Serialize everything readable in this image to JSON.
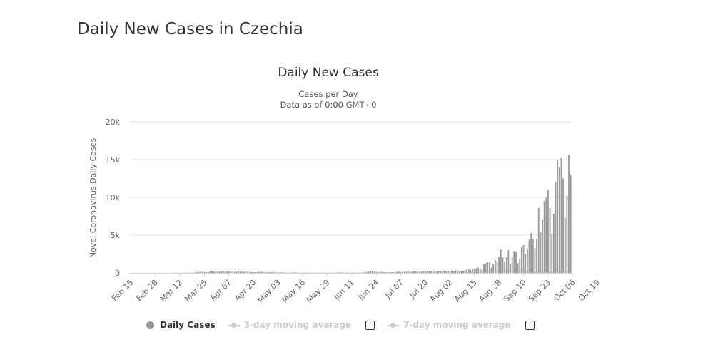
{
  "page": {
    "heading": "Daily New Cases in Czechia"
  },
  "legend": {
    "daily_cases": "Daily Cases",
    "ma3": "3-day moving average",
    "ma7": "7-day moving average"
  },
  "colors": {
    "bar": "#999999",
    "grid": "#e6e6e6",
    "axis_line": "#ccd6eb",
    "inactive": "#cccccc"
  },
  "chart_data": {
    "type": "bar",
    "title": "Daily New Cases",
    "subtitle": [
      "Cases per Day",
      "Data as of 0:00 GMT+0"
    ],
    "ylabel": "Novel Coronavirus Daily Cases",
    "xlabel": "",
    "ylim": [
      0,
      20000
    ],
    "yticks": [
      0,
      5000,
      10000,
      15000,
      20000
    ],
    "ytick_labels": [
      "0",
      "5k",
      "10k",
      "15k",
      "20k"
    ],
    "x_start": "Feb 15",
    "xtick_labels": [
      "Feb 15",
      "Feb 28",
      "Mar 12",
      "Mar 25",
      "Apr 07",
      "Apr 20",
      "May 03",
      "May 16",
      "May 29",
      "Jun 11",
      "Jun 24",
      "Jul 07",
      "Jul 20",
      "Aug 02",
      "Aug 15",
      "Aug 28",
      "Sep 10",
      "Sep 23",
      "Oct 06",
      "Oct 19"
    ],
    "grid": true,
    "legend_position": "bottom",
    "series": [
      {
        "name": "Daily Cases",
        "values": [
          0,
          0,
          0,
          0,
          0,
          0,
          0,
          0,
          0,
          0,
          0,
          0,
          0,
          0,
          0,
          0,
          0,
          3,
          2,
          7,
          9,
          3,
          7,
          11,
          14,
          13,
          18,
          12,
          36,
          0,
          69,
          35,
          25,
          56,
          49,
          96,
          129,
          144,
          156,
          103,
          85,
          108,
          295,
          269,
          213,
          168,
          204,
          174,
          259,
          247,
          154,
          162,
          227,
          208,
          159,
          115,
          182,
          260,
          190,
          153,
          145,
          160,
          169,
          106,
          102,
          92,
          98,
          103,
          115,
          184,
          126,
          70,
          75,
          85,
          105,
          142,
          76,
          74,
          43,
          67,
          56,
          58,
          44,
          32,
          31,
          48,
          62,
          45,
          35,
          31,
          35,
          38,
          45,
          45,
          33,
          44,
          30,
          28,
          34,
          43,
          29,
          33,
          23,
          27,
          33,
          44,
          28,
          19,
          20,
          40,
          59,
          56,
          38,
          35,
          26,
          55,
          22,
          41,
          45,
          41,
          30,
          23,
          38,
          64,
          98,
          105,
          168,
          260,
          305,
          168,
          113,
          120,
          138,
          123,
          90,
          105,
          80,
          76,
          87,
          90,
          112,
          130,
          175,
          88,
          143,
          150,
          184,
          198,
          140,
          167,
          206,
          211,
          158,
          145,
          189,
          224,
          270,
          178,
          210,
          235,
          255,
          202,
          215,
          283,
          247,
          246,
          329,
          240,
          262,
          213,
          296,
          225,
          364,
          320,
          204,
          262,
          276,
          367,
          450,
          418,
          386,
          500,
          600,
          620,
          710,
          520,
          440,
          1150,
          1300,
          1480,
          1400,
          700,
          1200,
          1700,
          1500,
          2150,
          3100,
          2000,
          1500,
          2100,
          3000,
          1200,
          2200,
          2900,
          2800,
          1300,
          1900,
          3400,
          3700,
          2500,
          3200,
          4400,
          5300,
          4500,
          3300,
          4400,
          8600,
          5400,
          7000,
          9500,
          10000,
          11000,
          8600,
          5100,
          7800,
          12000,
          14900,
          14000,
          15200,
          12500,
          7300,
          10200,
          15600,
          13000
        ]
      }
    ]
  }
}
